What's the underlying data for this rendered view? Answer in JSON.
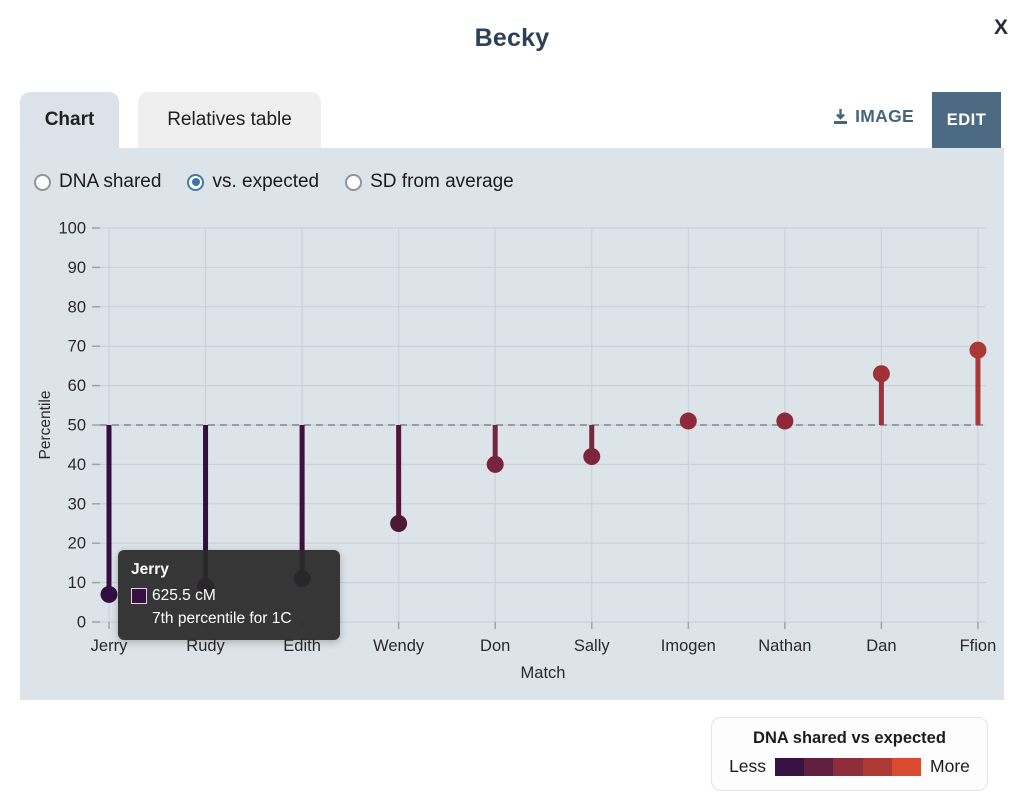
{
  "modal": {
    "title": "Becky",
    "close_label": "X"
  },
  "tabs": [
    {
      "label": "Chart",
      "active": true
    },
    {
      "label": "Relatives table",
      "active": false
    }
  ],
  "toolbar": {
    "image_label": "IMAGE",
    "edit_label": "EDIT"
  },
  "view_options": [
    {
      "label": "DNA shared",
      "selected": false
    },
    {
      "label": "vs. expected",
      "selected": true
    },
    {
      "label": "SD from average",
      "selected": false
    }
  ],
  "chart_data": {
    "type": "lollipop",
    "xlabel": "Match",
    "ylabel": "Percentile",
    "ylim": [
      0,
      100
    ],
    "ytick_step": 10,
    "baseline": 50,
    "grid": true,
    "categories": [
      "Jerry",
      "Rudy",
      "Edith",
      "Wendy",
      "Don",
      "Sally",
      "Imogen",
      "Nathan",
      "Dan",
      "Ffion"
    ],
    "series": [
      {
        "name": "vs. expected percentile",
        "values": [
          7,
          9,
          11,
          25,
          40,
          42,
          51,
          51,
          63,
          69
        ]
      }
    ],
    "point_colors": [
      "#350e41",
      "#350e41",
      "#3a113f",
      "#4e1839",
      "#7a2340",
      "#7d243f",
      "#8e2939",
      "#8e2939",
      "#a13137",
      "#aa3837"
    ],
    "colors": {
      "gridline": "#c6cfd8",
      "tick": "#9aa4ad",
      "baseline_dash": "#7d858d",
      "axis_text": "#2a2a2a"
    }
  },
  "tooltip": {
    "title": "Jerry",
    "value_line": "625.5 cM",
    "detail_line": "7th percentile for 1C",
    "swatch_color": "#381040"
  },
  "legend": {
    "title": "DNA shared vs expected",
    "less_label": "Less",
    "more_label": "More",
    "gradient_colors": [
      "#3a1143",
      "#61203f",
      "#8f2e3a",
      "#ad3a34",
      "#d84b30"
    ]
  }
}
